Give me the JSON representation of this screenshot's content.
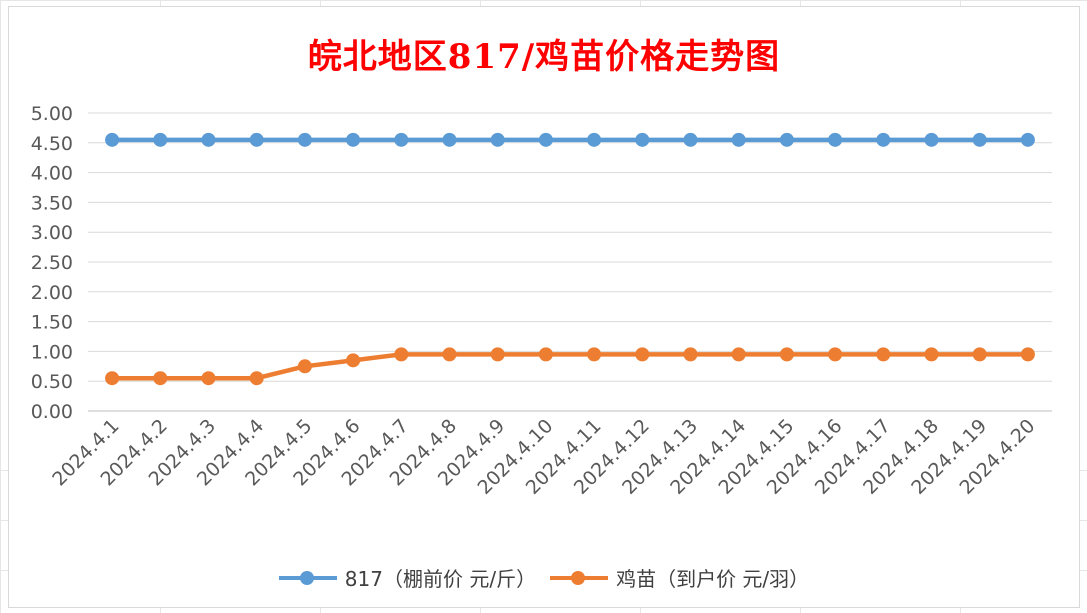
{
  "chart_data": {
    "type": "line",
    "title": "皖北地区817/鸡苗价格走势图",
    "title_color": "#ff0000",
    "categories": [
      "2024.4.1",
      "2024.4.2",
      "2024.4.3",
      "2024.4.4",
      "2024.4.5",
      "2024.4.6",
      "2024.4.7",
      "2024.4.8",
      "2024.4.9",
      "2024.4.10",
      "2024.4.11",
      "2024.4.12",
      "2024.4.13",
      "2024.4.14",
      "2024.4.15",
      "2024.4.16",
      "2024.4.17",
      "2024.4.18",
      "2024.4.19",
      "2024.4.20"
    ],
    "series": [
      {
        "name": "817（棚前价 元/斤）",
        "color": "#5b9bd5",
        "values": [
          4.55,
          4.55,
          4.55,
          4.55,
          4.55,
          4.55,
          4.55,
          4.55,
          4.55,
          4.55,
          4.55,
          4.55,
          4.55,
          4.55,
          4.55,
          4.55,
          4.55,
          4.55,
          4.55,
          4.55
        ]
      },
      {
        "name": "鸡苗（到户价 元/羽）",
        "color": "#ed7d31",
        "values": [
          0.55,
          0.55,
          0.55,
          0.55,
          0.75,
          0.85,
          0.95,
          0.95,
          0.95,
          0.95,
          0.95,
          0.95,
          0.95,
          0.95,
          0.95,
          0.95,
          0.95,
          0.95,
          0.95,
          0.95
        ]
      }
    ],
    "ylim": [
      0,
      5
    ],
    "yticks": [
      "0.00",
      "0.50",
      "1.00",
      "1.50",
      "2.00",
      "2.50",
      "3.00",
      "3.50",
      "4.00",
      "4.50",
      "5.00"
    ],
    "xlabel": "",
    "ylabel": "",
    "grid": true,
    "legend": "bottom"
  }
}
